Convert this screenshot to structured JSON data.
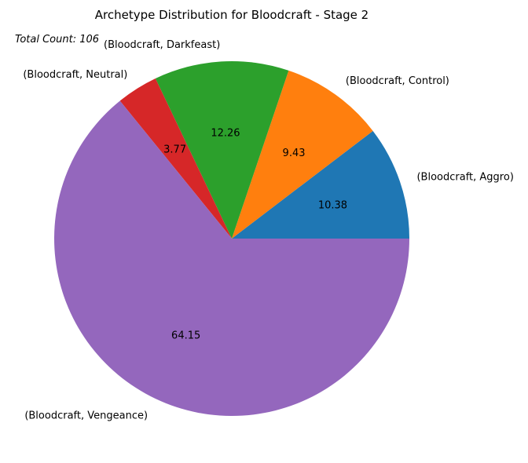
{
  "chart_data": {
    "type": "pie",
    "title": "Archetype Distribution for Bloodcraft - Stage 2",
    "annotation": "Total Count: 106",
    "categories": [
      "(Bloodcraft, Aggro)",
      "(Bloodcraft, Control)",
      "(Bloodcraft, Darkfeast)",
      "(Bloodcraft, Neutral)",
      "(Bloodcraft, Vengeance)"
    ],
    "values": [
      10.38,
      9.43,
      12.26,
      3.77,
      64.15
    ],
    "value_labels": [
      "10.38",
      "9.43",
      "12.26",
      "3.77",
      "64.15"
    ],
    "colors": [
      "#1f77b4",
      "#ff7f0e",
      "#2ca02c",
      "#d62728",
      "#9467bd"
    ],
    "start_angle_deg": 0,
    "direction": "counterclockwise"
  }
}
